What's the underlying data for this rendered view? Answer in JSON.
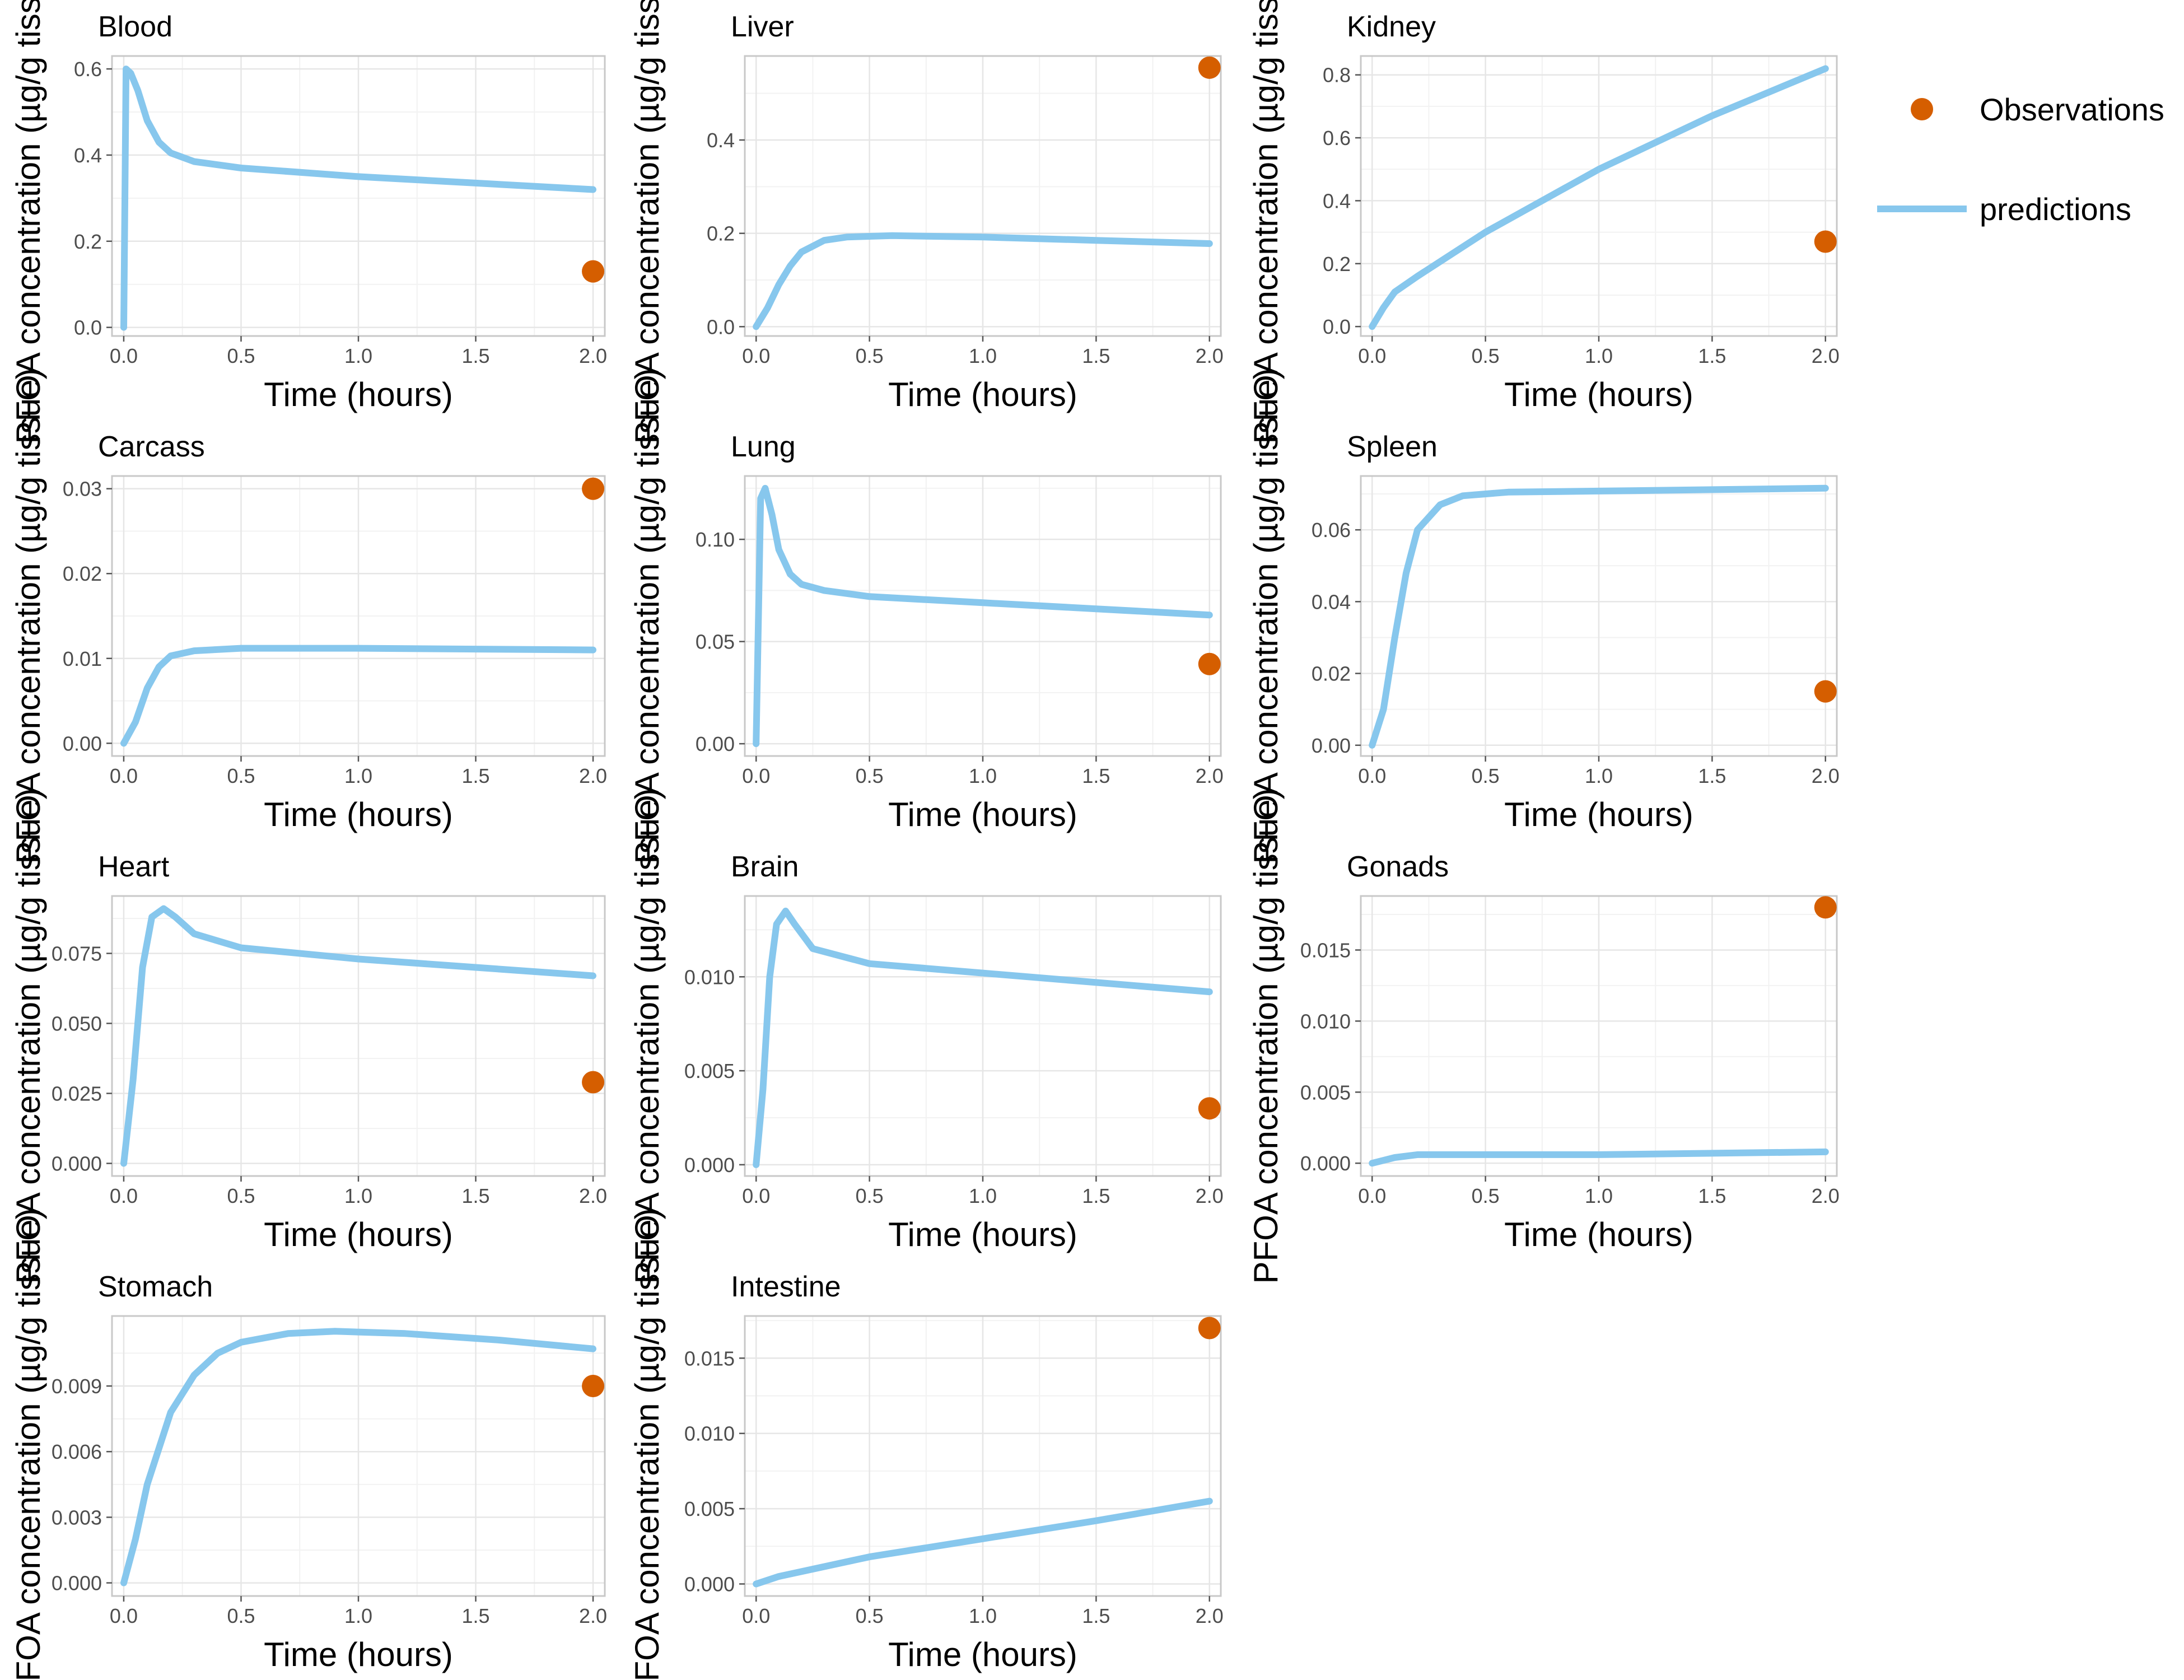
{
  "chart_data": {
    "type": "line",
    "colors": {
      "observations": "#D55E00",
      "predictions": "#87C7ED"
    },
    "legend": {
      "position": "right",
      "items": [
        {
          "label": "Observations",
          "kind": "point"
        },
        {
          "label": "predictions",
          "kind": "line"
        }
      ]
    },
    "grid": true,
    "panels": [
      {
        "title": "Blood",
        "xlabel": "Time (hours)",
        "ylabel": "PFOA concentration (µg/g tissue)",
        "xlim": [
          -0.05,
          2.05
        ],
        "ylim": [
          -0.02,
          0.63
        ],
        "xticks": [
          0,
          0.5,
          1,
          1.5,
          2
        ],
        "xtick_labels": [
          "0.0",
          "0.5",
          "1.0",
          "1.5",
          "2.0"
        ],
        "yticks": [
          0,
          0.2,
          0.4,
          0.6
        ],
        "ytick_labels": [
          "0.0",
          "0.2",
          "0.4",
          "0.6"
        ],
        "predictions": [
          [
            0.0,
            0.0
          ],
          [
            0.01,
            0.6
          ],
          [
            0.03,
            0.59
          ],
          [
            0.06,
            0.55
          ],
          [
            0.1,
            0.48
          ],
          [
            0.15,
            0.43
          ],
          [
            0.2,
            0.405
          ],
          [
            0.3,
            0.385
          ],
          [
            0.5,
            0.37
          ],
          [
            1.0,
            0.35
          ],
          [
            1.5,
            0.335
          ],
          [
            2.0,
            0.32
          ]
        ],
        "observations": [
          [
            2.0,
            0.13
          ]
        ]
      },
      {
        "title": "Liver",
        "xlabel": "Time (hours)",
        "ylabel": "PFOA concentration (µg/g tissue)",
        "xlim": [
          -0.05,
          2.05
        ],
        "ylim": [
          -0.02,
          0.58
        ],
        "xticks": [
          0,
          0.5,
          1,
          1.5,
          2
        ],
        "xtick_labels": [
          "0.0",
          "0.5",
          "1.0",
          "1.5",
          "2.0"
        ],
        "yticks": [
          0,
          0.2,
          0.4
        ],
        "ytick_labels": [
          "0.0",
          "0.2",
          "0.4"
        ],
        "predictions": [
          [
            0.0,
            0.0
          ],
          [
            0.05,
            0.04
          ],
          [
            0.1,
            0.09
          ],
          [
            0.15,
            0.13
          ],
          [
            0.2,
            0.16
          ],
          [
            0.3,
            0.185
          ],
          [
            0.4,
            0.192
          ],
          [
            0.6,
            0.195
          ],
          [
            1.0,
            0.192
          ],
          [
            1.5,
            0.185
          ],
          [
            2.0,
            0.178
          ]
        ],
        "observations": [
          [
            2.0,
            0.555
          ]
        ]
      },
      {
        "title": "Kidney",
        "xlabel": "Time (hours)",
        "ylabel": "PFOA concentration (µg/g tissue)",
        "xlim": [
          -0.05,
          2.05
        ],
        "ylim": [
          -0.03,
          0.86
        ],
        "xticks": [
          0,
          0.5,
          1,
          1.5,
          2
        ],
        "xtick_labels": [
          "0.0",
          "0.5",
          "1.0",
          "1.5",
          "2.0"
        ],
        "yticks": [
          0,
          0.2,
          0.4,
          0.6,
          0.8
        ],
        "ytick_labels": [
          "0.0",
          "0.2",
          "0.4",
          "0.6",
          "0.8"
        ],
        "predictions": [
          [
            0.0,
            0.0
          ],
          [
            0.05,
            0.06
          ],
          [
            0.1,
            0.11
          ],
          [
            0.2,
            0.16
          ],
          [
            0.5,
            0.3
          ],
          [
            1.0,
            0.5
          ],
          [
            1.5,
            0.67
          ],
          [
            2.0,
            0.82
          ]
        ],
        "observations": [
          [
            2.0,
            0.27
          ]
        ]
      },
      {
        "title": "Carcass",
        "xlabel": "Time (hours)",
        "ylabel": "PFOA concentration (µg/g tissue)",
        "xlim": [
          -0.05,
          2.05
        ],
        "ylim": [
          -0.0015,
          0.0315
        ],
        "xticks": [
          0,
          0.5,
          1,
          1.5,
          2
        ],
        "xtick_labels": [
          "0.0",
          "0.5",
          "1.0",
          "1.5",
          "2.0"
        ],
        "yticks": [
          0,
          0.01,
          0.02,
          0.03
        ],
        "ytick_labels": [
          "0.00",
          "0.01",
          "0.02",
          "0.03"
        ],
        "predictions": [
          [
            0.0,
            0.0
          ],
          [
            0.05,
            0.0025
          ],
          [
            0.1,
            0.0065
          ],
          [
            0.15,
            0.009
          ],
          [
            0.2,
            0.0103
          ],
          [
            0.3,
            0.0109
          ],
          [
            0.5,
            0.0112
          ],
          [
            1.0,
            0.0112
          ],
          [
            1.5,
            0.0111
          ],
          [
            2.0,
            0.011
          ]
        ],
        "observations": [
          [
            2.0,
            0.03
          ]
        ]
      },
      {
        "title": "Lung",
        "xlabel": "Time (hours)",
        "ylabel": "PFOA concentration (µg/g tissue)",
        "xlim": [
          -0.05,
          2.05
        ],
        "ylim": [
          -0.006,
          0.131
        ],
        "xticks": [
          0,
          0.5,
          1,
          1.5,
          2
        ],
        "xtick_labels": [
          "0.0",
          "0.5",
          "1.0",
          "1.5",
          "2.0"
        ],
        "yticks": [
          0,
          0.05,
          0.1
        ],
        "ytick_labels": [
          "0.00",
          "0.05",
          "0.10"
        ],
        "predictions": [
          [
            0.0,
            0.0
          ],
          [
            0.02,
            0.12
          ],
          [
            0.04,
            0.125
          ],
          [
            0.07,
            0.112
          ],
          [
            0.1,
            0.095
          ],
          [
            0.15,
            0.083
          ],
          [
            0.2,
            0.078
          ],
          [
            0.3,
            0.075
          ],
          [
            0.5,
            0.072
          ],
          [
            1.0,
            0.069
          ],
          [
            1.5,
            0.066
          ],
          [
            2.0,
            0.063
          ]
        ],
        "observations": [
          [
            2.0,
            0.039
          ]
        ]
      },
      {
        "title": "Spleen",
        "xlabel": "Time (hours)",
        "ylabel": "PFOA concentration (µg/g tissue)",
        "xlim": [
          -0.05,
          2.05
        ],
        "ylim": [
          -0.003,
          0.075
        ],
        "xticks": [
          0,
          0.5,
          1,
          1.5,
          2
        ],
        "xtick_labels": [
          "0.0",
          "0.5",
          "1.0",
          "1.5",
          "2.0"
        ],
        "yticks": [
          0,
          0.02,
          0.04,
          0.06
        ],
        "ytick_labels": [
          "0.00",
          "0.02",
          "0.04",
          "0.06"
        ],
        "predictions": [
          [
            0.0,
            0.0
          ],
          [
            0.05,
            0.01
          ],
          [
            0.1,
            0.03
          ],
          [
            0.15,
            0.048
          ],
          [
            0.2,
            0.06
          ],
          [
            0.3,
            0.067
          ],
          [
            0.4,
            0.0695
          ],
          [
            0.6,
            0.0705
          ],
          [
            1.0,
            0.0708
          ],
          [
            1.5,
            0.0712
          ],
          [
            2.0,
            0.0716
          ]
        ],
        "observations": [
          [
            2.0,
            0.015
          ]
        ]
      },
      {
        "title": "Heart",
        "xlabel": "Time (hours)",
        "ylabel": "PFOA concentration (µg/g tissue)",
        "xlim": [
          -0.05,
          2.05
        ],
        "ylim": [
          -0.0045,
          0.0955
        ],
        "xticks": [
          0,
          0.5,
          1,
          1.5,
          2
        ],
        "xtick_labels": [
          "0.0",
          "0.5",
          "1.0",
          "1.5",
          "2.0"
        ],
        "yticks": [
          0,
          0.025,
          0.05,
          0.075
        ],
        "ytick_labels": [
          "0.000",
          "0.025",
          "0.050",
          "0.075"
        ],
        "predictions": [
          [
            0.0,
            0.0
          ],
          [
            0.04,
            0.03
          ],
          [
            0.08,
            0.07
          ],
          [
            0.12,
            0.088
          ],
          [
            0.17,
            0.091
          ],
          [
            0.22,
            0.088
          ],
          [
            0.3,
            0.082
          ],
          [
            0.5,
            0.077
          ],
          [
            1.0,
            0.073
          ],
          [
            1.5,
            0.07
          ],
          [
            2.0,
            0.067
          ]
        ],
        "observations": [
          [
            2.0,
            0.029
          ]
        ]
      },
      {
        "title": "Brain",
        "xlabel": "Time (hours)",
        "ylabel": "PFOA concentration (µg/g tissue)",
        "xlim": [
          -0.05,
          2.05
        ],
        "ylim": [
          -0.0006,
          0.0143
        ],
        "xticks": [
          0,
          0.5,
          1,
          1.5,
          2
        ],
        "xtick_labels": [
          "0.0",
          "0.5",
          "1.0",
          "1.5",
          "2.0"
        ],
        "yticks": [
          0,
          0.005,
          0.01
        ],
        "ytick_labels": [
          "0.000",
          "0.005",
          "0.010"
        ],
        "predictions": [
          [
            0.0,
            0.0
          ],
          [
            0.03,
            0.004
          ],
          [
            0.06,
            0.01
          ],
          [
            0.09,
            0.0128
          ],
          [
            0.13,
            0.0135
          ],
          [
            0.17,
            0.0128
          ],
          [
            0.25,
            0.0115
          ],
          [
            0.5,
            0.0107
          ],
          [
            1.0,
            0.0102
          ],
          [
            1.5,
            0.0097
          ],
          [
            2.0,
            0.0092
          ]
        ],
        "observations": [
          [
            2.0,
            0.003
          ]
        ]
      },
      {
        "title": "Gonads",
        "xlabel": "Time (hours)",
        "ylabel": "PFOA concentration (µg/g tissue)",
        "xlim": [
          -0.05,
          2.05
        ],
        "ylim": [
          -0.0009,
          0.0188
        ],
        "xticks": [
          0,
          0.5,
          1,
          1.5,
          2
        ],
        "xtick_labels": [
          "0.0",
          "0.5",
          "1.0",
          "1.5",
          "2.0"
        ],
        "yticks": [
          0,
          0.005,
          0.01,
          0.015
        ],
        "ytick_labels": [
          "0.000",
          "0.005",
          "0.010",
          "0.015"
        ],
        "predictions": [
          [
            0.0,
            0.0
          ],
          [
            0.1,
            0.0004
          ],
          [
            0.2,
            0.0006
          ],
          [
            0.5,
            0.0006
          ],
          [
            1.0,
            0.0006
          ],
          [
            1.5,
            0.0007
          ],
          [
            2.0,
            0.0008
          ]
        ],
        "observations": [
          [
            2.0,
            0.018
          ]
        ]
      },
      {
        "title": "Stomach",
        "xlabel": "Time (hours)",
        "ylabel": "PFOA concentration (µg/g tissue)",
        "xlim": [
          -0.05,
          2.05
        ],
        "ylim": [
          -0.0006,
          0.0122
        ],
        "xticks": [
          0,
          0.5,
          1,
          1.5,
          2
        ],
        "xtick_labels": [
          "0.0",
          "0.5",
          "1.0",
          "1.5",
          "2.0"
        ],
        "yticks": [
          0,
          0.003,
          0.006,
          0.009
        ],
        "ytick_labels": [
          "0.000",
          "0.003",
          "0.006",
          "0.009"
        ],
        "predictions": [
          [
            0.0,
            0.0
          ],
          [
            0.05,
            0.002
          ],
          [
            0.1,
            0.0045
          ],
          [
            0.2,
            0.0078
          ],
          [
            0.3,
            0.0095
          ],
          [
            0.4,
            0.0105
          ],
          [
            0.5,
            0.011
          ],
          [
            0.7,
            0.0114
          ],
          [
            0.9,
            0.0115
          ],
          [
            1.2,
            0.0114
          ],
          [
            1.6,
            0.0111
          ],
          [
            2.0,
            0.0107
          ]
        ],
        "observations": [
          [
            2.0,
            0.009
          ]
        ]
      },
      {
        "title": "Intestine",
        "xlabel": "Time (hours)",
        "ylabel": "PFOA concentration (µg/g tissue)",
        "xlim": [
          -0.05,
          2.05
        ],
        "ylim": [
          -0.0008,
          0.0178
        ],
        "xticks": [
          0,
          0.5,
          1,
          1.5,
          2
        ],
        "xtick_labels": [
          "0.0",
          "0.5",
          "1.0",
          "1.5",
          "2.0"
        ],
        "yticks": [
          0,
          0.005,
          0.01,
          0.015
        ],
        "ytick_labels": [
          "0.000",
          "0.005",
          "0.010",
          "0.015"
        ],
        "predictions": [
          [
            0.0,
            0.0
          ],
          [
            0.1,
            0.0005
          ],
          [
            0.5,
            0.0018
          ],
          [
            1.0,
            0.003
          ],
          [
            1.5,
            0.0042
          ],
          [
            2.0,
            0.0055
          ]
        ],
        "observations": [
          [
            2.0,
            0.017
          ]
        ]
      }
    ]
  }
}
